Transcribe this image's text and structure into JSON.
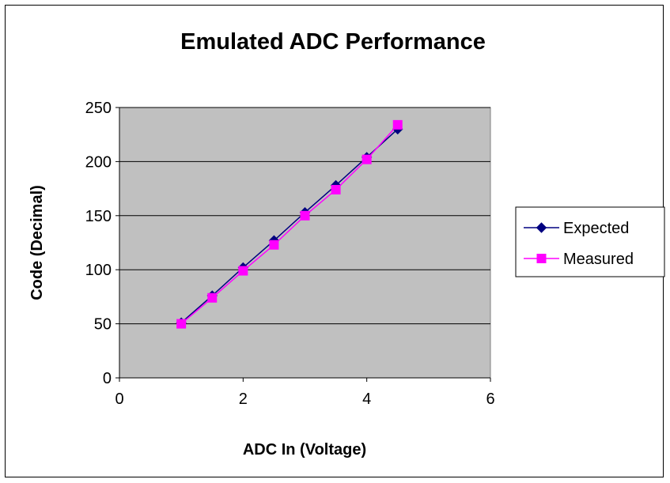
{
  "chart_data": {
    "type": "line",
    "title": "Emulated ADC Performance",
    "xlabel": "ADC In (Voltage)",
    "ylabel": "Code (Decimal)",
    "xlim": [
      0,
      6
    ],
    "ylim": [
      0,
      250
    ],
    "x_ticks": [
      0,
      2,
      4,
      6
    ],
    "y_ticks": [
      0,
      50,
      100,
      150,
      200,
      250
    ],
    "x_tick_labels": [
      "0",
      "2",
      "4",
      "6"
    ],
    "y_tick_labels": [
      "0",
      "50",
      "100",
      "150",
      "200",
      "250"
    ],
    "grid": "horizontal",
    "plot_background": "#c0c0c0",
    "legend_position": "right",
    "x": [
      1,
      1.5,
      2,
      2.5,
      3,
      3.5,
      4,
      4.5
    ],
    "series": [
      {
        "name": "Expected",
        "color": "#000080",
        "marker": "diamond",
        "values": [
          51,
          76,
          102,
          127,
          153,
          178,
          204,
          230
        ]
      },
      {
        "name": "Measured",
        "color": "#ff00ff",
        "marker": "square",
        "values": [
          50,
          74,
          99,
          123,
          150,
          174,
          202,
          234
        ]
      }
    ]
  }
}
